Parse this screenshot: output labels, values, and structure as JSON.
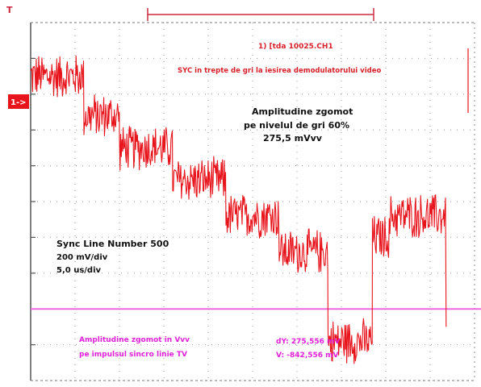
{
  "markers": {
    "trigger_top": "T",
    "channel_marker": "1->"
  },
  "annotations": {
    "line1": "1) [tda 10025.CH1",
    "line2": "SYC in trepte de gri la iesirea demodulatorului video",
    "amp_title_1": "Amplitudine zgomot",
    "amp_title_2": "pe nivelul de gri 60%",
    "amp_value": "275,5 mVvv",
    "sync_line": "Sync Line Number 500",
    "vdiv": "200 mV/div",
    "tdiv": "5,0 us/div",
    "bottom_left_1": "Amplitudine zgomot in Vvv",
    "bottom_left_2": "pe impulsul sincro linie TV",
    "dy": "dY: 275,556 mV",
    "vval": "V: -842,556 mV"
  },
  "colors": {
    "trace": "#e8141c",
    "cursor": "#ee66dd",
    "red_text": "#d8202a",
    "magenta_text": "#e020d8",
    "grid": "#7a7a7a",
    "trigger": "#cc2a40"
  },
  "chart_data": {
    "type": "line",
    "description_units": "x in us from left edge of screen, y in mV relative to center graticule",
    "xlim": [
      0,
      50
    ],
    "ylim": [
      -1000,
      1000
    ],
    "x_div": 5.0,
    "y_div": 200,
    "series": [
      {
        "levels": [
          {
            "x_start": 0,
            "x_end": 6,
            "y": 700
          },
          {
            "x_start": 6,
            "x_end": 10,
            "y": 480
          },
          {
            "x_start": 10,
            "x_end": 16,
            "y": 300
          },
          {
            "x_start": 16,
            "x_end": 22,
            "y": 120
          },
          {
            "x_start": 22,
            "x_end": 28,
            "y": -80
          },
          {
            "x_start": 28,
            "x_end": 33.5,
            "y": -280
          },
          {
            "x_start": 33.5,
            "x_end": 38.5,
            "y": -780
          },
          {
            "x_start": 38.5,
            "x_end": 40.5,
            "y": -200
          },
          {
            "x_start": 40.5,
            "x_end": 46.8,
            "y": -80
          }
        ],
        "noise_mvvv": 275.5
      }
    ],
    "cursor_y": -600
  }
}
